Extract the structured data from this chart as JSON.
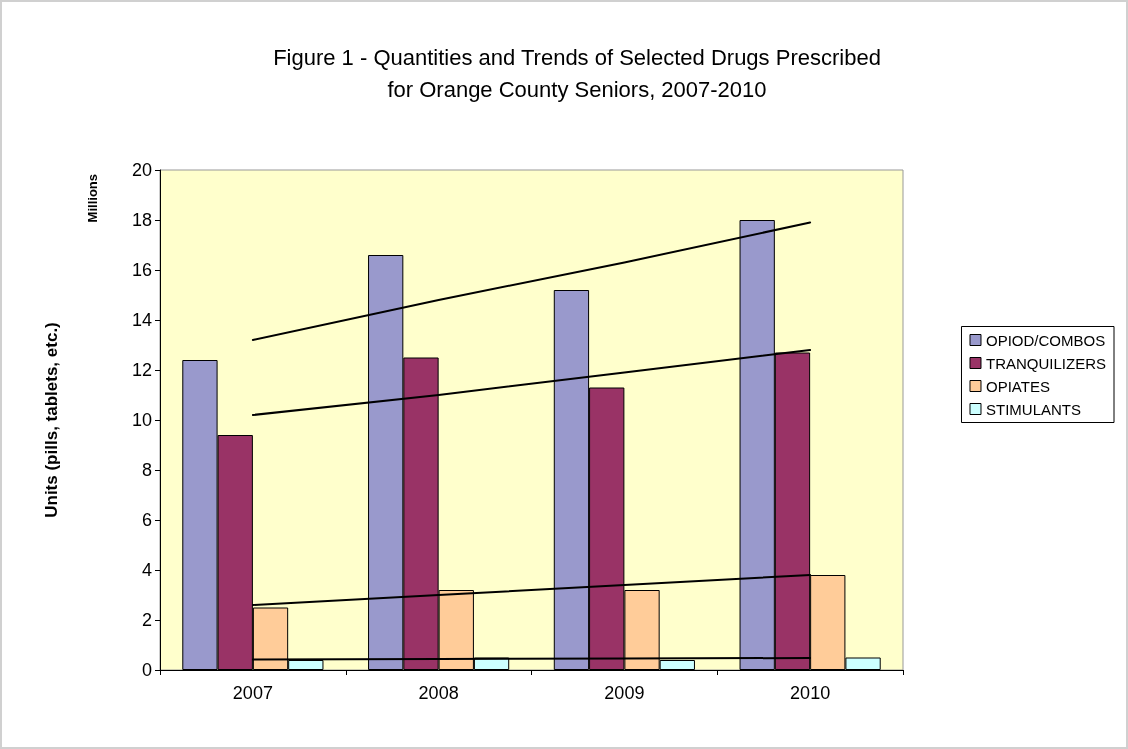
{
  "chart_data": {
    "type": "bar",
    "title": "Figure 1 - Quantities and Trends of Selected Drugs Prescribed\nfor Orange County Seniors, 2007-2010",
    "categories": [
      "2007",
      "2008",
      "2009",
      "2010"
    ],
    "series": [
      {
        "name": "OPIOD/COMBOS",
        "color": "#9999cc",
        "values": [
          12.4,
          16.6,
          15.2,
          18.0
        ]
      },
      {
        "name": "TRANQUILIZERS",
        "color": "#993366",
        "values": [
          9.4,
          12.5,
          11.3,
          12.7
        ]
      },
      {
        "name": "OPIATES",
        "color": "#ffcc99",
        "values": [
          2.5,
          3.2,
          3.2,
          3.8
        ]
      },
      {
        "name": "STIMULANTS",
        "color": "#ccffff",
        "values": [
          0.4,
          0.5,
          0.4,
          0.5
        ]
      },
      {
        "type": "line",
        "color": "#000000",
        "values": [
          13.2,
          14.8,
          16.3,
          17.9
        ]
      },
      {
        "type": "line",
        "color": "#000000",
        "values": [
          10.2,
          11.0,
          11.9,
          12.8
        ]
      },
      {
        "type": "line",
        "color": "#000000",
        "values": [
          2.6,
          3.0,
          3.4,
          3.8
        ]
      },
      {
        "type": "line",
        "color": "#000000",
        "values": [
          0.42,
          0.44,
          0.46,
          0.48
        ]
      }
    ],
    "ylabel": "Units (pills, tablets, etc.)",
    "annotations": [
      "Millions"
    ],
    "ylim": [
      0,
      20
    ],
    "yticks": [
      0,
      2,
      4,
      6,
      8,
      10,
      12,
      14,
      16,
      18,
      20
    ],
    "grid": false,
    "legend": "right",
    "marker": "none",
    "line_style": "solid"
  }
}
